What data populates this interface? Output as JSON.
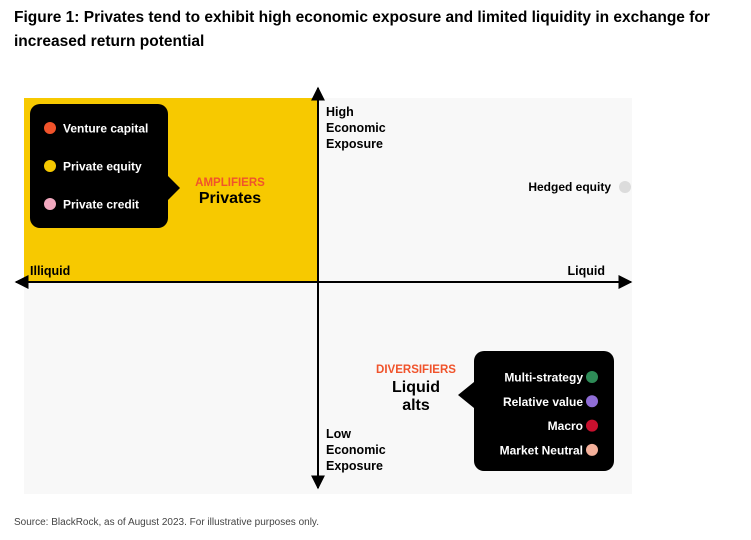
{
  "title": "Figure 1: Privates tend to exhibit high economic exposure and limited liquidity in exchange for increased return potential",
  "axes": {
    "top": [
      "High",
      "Economic",
      "Exposure"
    ],
    "bottom": [
      "Low",
      "Economic",
      "Exposure"
    ],
    "left": "Illiquid",
    "right": "Liquid"
  },
  "privates": {
    "tag": "AMPLIFIERS",
    "name": [
      "Privates"
    ],
    "items": [
      {
        "label": "Venture capital",
        "color": "#f0532b"
      },
      {
        "label": "Private equity",
        "color": "#f5c800"
      },
      {
        "label": "Private credit",
        "color": "#f2a9bf"
      }
    ]
  },
  "hedged": {
    "label": "Hedged equity",
    "color": "#dcdcdc"
  },
  "liquid_alts": {
    "tag": "DIVERSIFIERS",
    "name": [
      "Liquid",
      "alts"
    ],
    "items": [
      {
        "label": "Multi-strategy",
        "color": "#2e8b57"
      },
      {
        "label": "Relative value",
        "color": "#8f6dd6"
      },
      {
        "label": "Macro",
        "color": "#c8102e"
      },
      {
        "label": "Market Neutral",
        "color": "#f4b09a"
      }
    ]
  },
  "source": "Source: BlackRock, as of August 2023. For illustrative purposes only."
}
